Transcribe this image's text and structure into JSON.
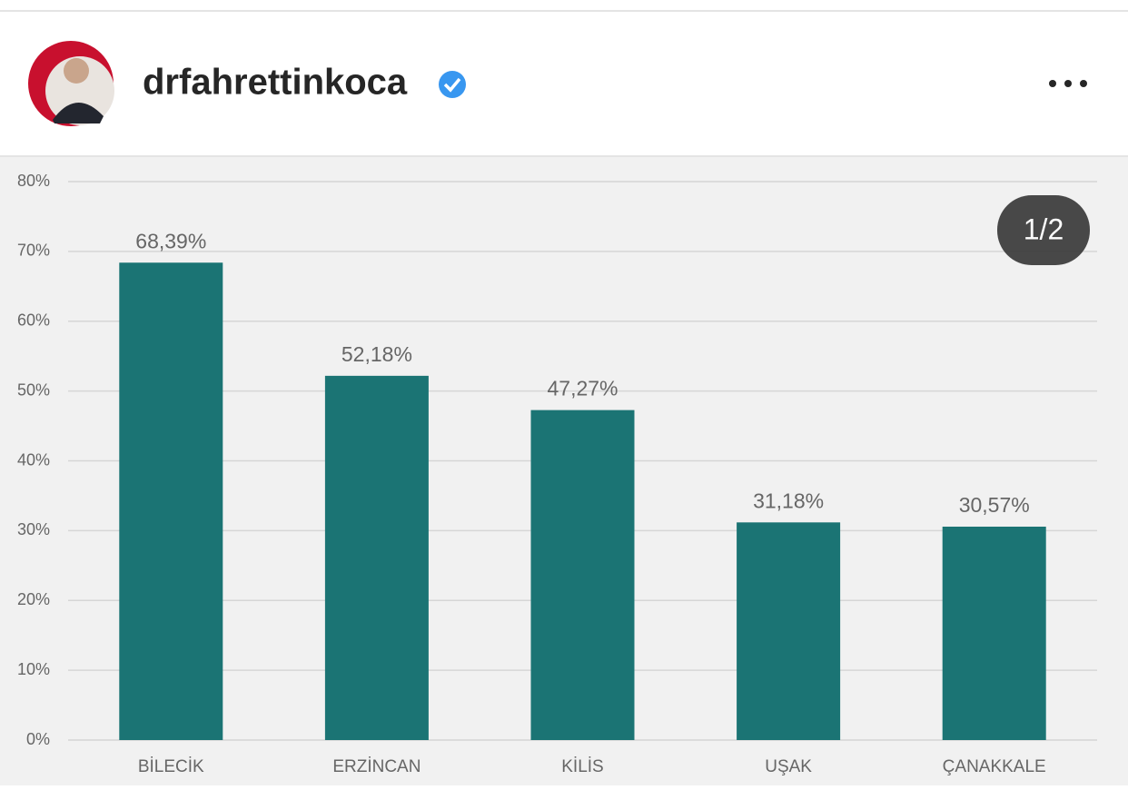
{
  "header": {
    "username": "drfahrettinkoca"
  },
  "pager": {
    "label": "1/2"
  },
  "chart_data": {
    "type": "bar",
    "categories": [
      "BİLECİK",
      "ERZİNCAN",
      "KİLİS",
      "UŞAK",
      "ÇANAKKALE"
    ],
    "values": [
      68.39,
      52.18,
      47.27,
      31.18,
      30.57
    ],
    "value_labels": [
      "68,39%",
      "52,18%",
      "47,27%",
      "31,18%",
      "30,57%"
    ],
    "color": "#1b7474",
    "ylim": [
      0,
      80
    ],
    "yticks": [
      {
        "value": 0,
        "label": "0%"
      },
      {
        "value": 10,
        "label": "10%"
      },
      {
        "value": 20,
        "label": "20%"
      },
      {
        "value": 30,
        "label": "30%"
      },
      {
        "value": 40,
        "label": "40%"
      },
      {
        "value": 50,
        "label": "50%"
      },
      {
        "value": 60,
        "label": "60%"
      },
      {
        "value": 70,
        "label": "70%"
      },
      {
        "value": 80,
        "label": "80%"
      }
    ],
    "grid": true
  }
}
